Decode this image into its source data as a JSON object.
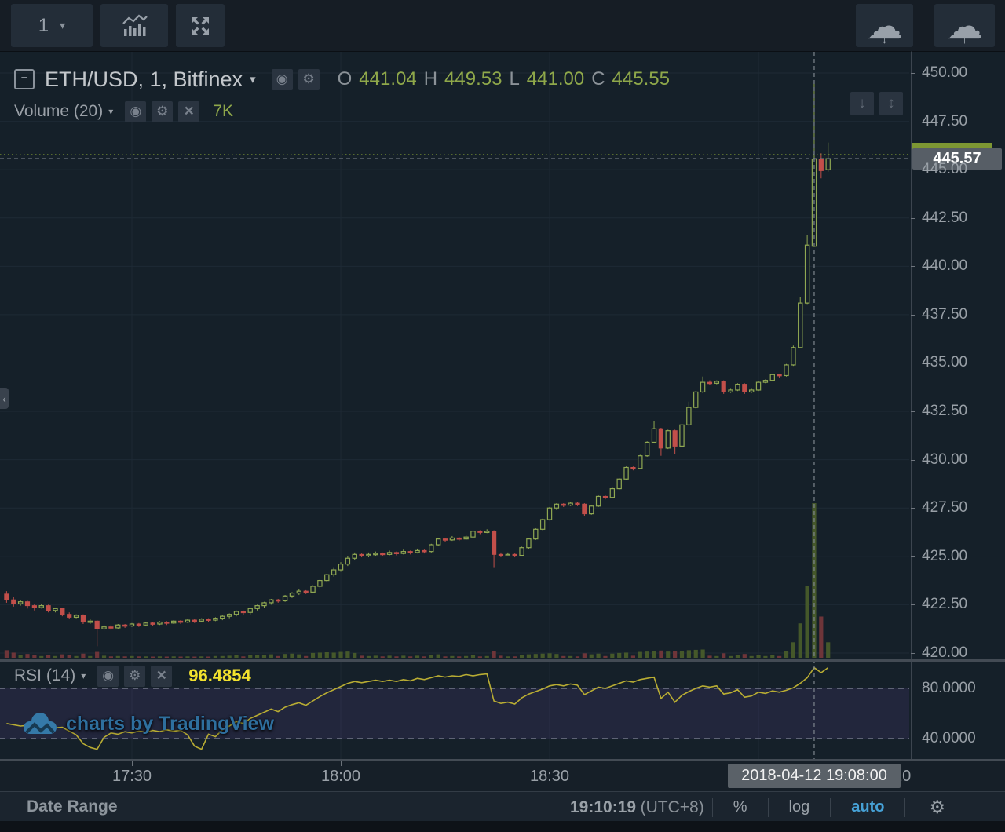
{
  "top_toolbar": {
    "interval": "1",
    "interval_caret": "▾",
    "style_button": "chart-style",
    "fullscreen_button": "fullscreen",
    "cloud_load": "cloud-download",
    "cloud_save": "cloud-upload"
  },
  "header": {
    "collapse_glyph": "–",
    "symbol_title": "ETH/USD, 1, Bitfinex",
    "caret": "▾",
    "eye_glyph": "◉",
    "gear_glyph": "⚙",
    "ohlc": {
      "o_label": "O",
      "o": "441.04",
      "h_label": "H",
      "h": "449.53",
      "l_label": "L",
      "l": "441.00",
      "c_label": "C",
      "c": "445.55"
    }
  },
  "volume_row": {
    "label": "Volume (20)",
    "caret": "▾",
    "value": "7K"
  },
  "rsi_row": {
    "label": "RSI (14)",
    "caret": "▾",
    "value": "96.4854"
  },
  "scale_buttons": {
    "down_arrow": "↓",
    "updown_arrow": "↕"
  },
  "left_tab_glyph": "‹",
  "watermark": {
    "text": "charts by TradingView"
  },
  "price_axis": {
    "labels": [
      {
        "text": "450.00",
        "value": 450.0
      },
      {
        "text": "447.50",
        "value": 447.5
      },
      {
        "text": "445.00",
        "value": 445.0
      },
      {
        "text": "442.50",
        "value": 442.5
      },
      {
        "text": "440.00",
        "value": 440.0
      },
      {
        "text": "437.50",
        "value": 437.5
      },
      {
        "text": "435.00",
        "value": 435.0
      },
      {
        "text": "432.50",
        "value": 432.5
      },
      {
        "text": "430.00",
        "value": 430.0
      },
      {
        "text": "427.50",
        "value": 427.5
      },
      {
        "text": "425.00",
        "value": 425.0
      },
      {
        "text": "422.50",
        "value": 422.5
      },
      {
        "text": "420.00",
        "value": 420.0
      }
    ],
    "rsi_labels": [
      {
        "text": "80.0000",
        "value": 80
      },
      {
        "text": "40.0000",
        "value": 40
      }
    ],
    "crosshair_badge": "445.57"
  },
  "time_axis": {
    "labels": [
      {
        "text": "17:30",
        "minute": 18
      },
      {
        "text": "18:00",
        "minute": 48
      },
      {
        "text": "18:30",
        "minute": 78
      }
    ],
    "partial_label": "20",
    "crosshair_badge": "2018-04-12 19:08:00"
  },
  "bottom_toolbar": {
    "date_range": "Date Range",
    "clock": "19:10:19",
    "tz": "(UTC+8)",
    "percent": "%",
    "log": "log",
    "auto": "auto",
    "gear_glyph": "⚙"
  },
  "colors": {
    "bg": "#152029",
    "grid": "#1e2a35",
    "up": "#90a852",
    "down": "#c24f4a",
    "vol_up": "#45582a",
    "vol_down": "#6e3539",
    "rsi_line": "#b9ad33",
    "rsi_value": "#f2e22e",
    "band_fill": "rgba(125,88,190,0.13)",
    "band_line": "#8e93a2",
    "price_line": "#7f9a33",
    "crosshair": "#7e868e",
    "badge_bg": "#575e66",
    "accent_blue": "#46a1d6",
    "watermark_blue": "#2e6f9e",
    "axis_text": "#99a0a7"
  },
  "chart_data": {
    "type": "candlestick",
    "symbol": "ETH/USD",
    "exchange": "Bitfinex",
    "interval_minutes": 1,
    "start_time": "17:12",
    "current_price": 445.57,
    "ohlc_readout": {
      "open": 441.04,
      "high": 449.53,
      "low": 441.0,
      "close": 445.55
    },
    "volume_ma_label": "7K",
    "rsi_period": 14,
    "rsi_current": 96.4854,
    "rsi_guides": [
      80,
      40
    ],
    "price_axis_visible_range": [
      419.0,
      451.0
    ],
    "crosshair": {
      "index": 116,
      "time": "2018-04-12 19:08:00",
      "price": 445.57
    },
    "candles": [
      [
        423.05,
        423.2,
        422.6,
        422.75,
        2.2
      ],
      [
        422.75,
        422.9,
        422.4,
        422.55,
        1.5
      ],
      [
        422.55,
        422.75,
        422.45,
        422.65,
        0.8
      ],
      [
        422.65,
        422.7,
        422.3,
        422.45,
        1.1
      ],
      [
        422.45,
        422.55,
        422.2,
        422.35,
        0.9
      ],
      [
        422.35,
        422.55,
        422.3,
        422.45,
        0.5
      ],
      [
        422.45,
        422.5,
        422.1,
        422.2,
        0.9
      ],
      [
        422.2,
        422.35,
        422.1,
        422.3,
        0.5
      ],
      [
        422.3,
        422.35,
        421.9,
        422.0,
        1.0
      ],
      [
        422.0,
        422.1,
        421.75,
        421.85,
        0.8
      ],
      [
        421.85,
        422.0,
        421.8,
        421.95,
        0.5
      ],
      [
        421.95,
        422.0,
        421.5,
        421.6,
        1.2
      ],
      [
        421.6,
        421.75,
        421.5,
        421.65,
        0.5
      ],
      [
        421.65,
        421.7,
        420.35,
        421.25,
        1.7
      ],
      [
        421.25,
        421.45,
        421.15,
        421.35,
        0.6
      ],
      [
        421.35,
        421.45,
        421.2,
        421.3,
        0.4
      ],
      [
        421.3,
        421.5,
        421.25,
        421.45,
        0.5
      ],
      [
        421.45,
        421.5,
        421.3,
        421.4,
        0.4
      ],
      [
        421.4,
        421.55,
        421.35,
        421.5,
        0.5
      ],
      [
        421.5,
        421.55,
        421.35,
        421.45,
        0.4
      ],
      [
        421.45,
        421.6,
        421.4,
        421.55,
        0.4
      ],
      [
        421.55,
        421.6,
        421.4,
        421.5,
        0.3
      ],
      [
        421.5,
        421.65,
        421.45,
        421.6,
        0.4
      ],
      [
        421.6,
        421.65,
        421.45,
        421.55,
        0.3
      ],
      [
        421.55,
        421.7,
        421.5,
        421.65,
        0.4
      ],
      [
        421.65,
        421.7,
        421.5,
        421.6,
        0.3
      ],
      [
        421.6,
        421.75,
        421.55,
        421.7,
        0.4
      ],
      [
        421.7,
        421.75,
        421.55,
        421.65,
        0.3
      ],
      [
        421.65,
        421.8,
        421.6,
        421.75,
        0.4
      ],
      [
        421.75,
        421.8,
        421.6,
        421.7,
        0.3
      ],
      [
        421.7,
        421.85,
        421.65,
        421.8,
        0.5
      ],
      [
        421.8,
        421.95,
        421.7,
        421.9,
        0.5
      ],
      [
        421.9,
        422.05,
        421.8,
        422.0,
        0.6
      ],
      [
        422.0,
        422.2,
        421.9,
        422.15,
        0.7
      ],
      [
        422.15,
        422.2,
        421.95,
        422.1,
        0.4
      ],
      [
        422.1,
        422.35,
        422.0,
        422.3,
        0.7
      ],
      [
        422.3,
        422.5,
        422.2,
        422.45,
        0.8
      ],
      [
        422.45,
        422.65,
        422.35,
        422.6,
        0.9
      ],
      [
        422.6,
        422.8,
        422.5,
        422.75,
        1.0
      ],
      [
        422.75,
        422.8,
        422.6,
        422.7,
        0.5
      ],
      [
        422.7,
        423.0,
        422.65,
        422.95,
        1.1
      ],
      [
        422.95,
        423.15,
        422.85,
        423.1,
        1.2
      ],
      [
        423.1,
        423.3,
        423.0,
        423.2,
        1.0
      ],
      [
        423.2,
        423.25,
        423.05,
        423.15,
        0.5
      ],
      [
        423.15,
        423.5,
        423.1,
        423.45,
        1.4
      ],
      [
        423.45,
        423.8,
        423.35,
        423.75,
        1.5
      ],
      [
        423.75,
        424.1,
        423.65,
        424.05,
        1.6
      ],
      [
        424.05,
        424.4,
        423.95,
        424.3,
        1.5
      ],
      [
        424.3,
        424.7,
        424.2,
        424.6,
        1.7
      ],
      [
        424.6,
        425.0,
        424.5,
        424.9,
        1.8
      ],
      [
        424.9,
        425.2,
        424.8,
        425.1,
        1.4
      ],
      [
        425.1,
        425.15,
        424.95,
        425.05,
        0.6
      ],
      [
        425.05,
        425.2,
        424.95,
        425.1,
        0.5
      ],
      [
        425.1,
        425.25,
        425.0,
        425.15,
        0.6
      ],
      [
        425.15,
        425.2,
        425.0,
        425.1,
        0.4
      ],
      [
        425.1,
        425.3,
        425.05,
        425.2,
        0.6
      ],
      [
        425.2,
        425.25,
        425.05,
        425.15,
        0.4
      ],
      [
        425.15,
        425.35,
        425.1,
        425.25,
        0.6
      ],
      [
        425.25,
        425.3,
        425.1,
        425.2,
        0.4
      ],
      [
        425.2,
        425.4,
        425.15,
        425.3,
        0.6
      ],
      [
        425.3,
        425.35,
        425.15,
        425.25,
        0.4
      ],
      [
        425.25,
        425.65,
        425.2,
        425.6,
        0.9
      ],
      [
        425.6,
        425.95,
        425.55,
        425.9,
        1.0
      ],
      [
        425.9,
        425.95,
        425.75,
        425.85,
        0.4
      ],
      [
        425.85,
        426.05,
        425.8,
        425.95,
        0.5
      ],
      [
        425.95,
        426.0,
        425.8,
        425.9,
        0.4
      ],
      [
        425.9,
        426.1,
        425.85,
        426.0,
        0.5
      ],
      [
        426.0,
        426.35,
        425.95,
        426.3,
        0.9
      ],
      [
        426.3,
        426.35,
        426.15,
        426.25,
        0.4
      ],
      [
        426.25,
        426.4,
        426.2,
        426.3,
        0.5
      ],
      [
        426.3,
        426.35,
        424.4,
        425.1,
        1.9
      ],
      [
        425.1,
        425.2,
        424.95,
        425.05,
        0.6
      ],
      [
        425.05,
        425.2,
        425.0,
        425.1,
        0.4
      ],
      [
        425.1,
        425.15,
        424.95,
        425.05,
        0.4
      ],
      [
        425.05,
        425.5,
        425.0,
        425.45,
        0.8
      ],
      [
        425.45,
        425.95,
        425.4,
        425.9,
        1.0
      ],
      [
        425.9,
        426.45,
        425.85,
        426.4,
        1.1
      ],
      [
        426.4,
        426.95,
        426.35,
        426.9,
        1.2
      ],
      [
        426.9,
        427.55,
        426.85,
        427.5,
        1.3
      ],
      [
        427.5,
        427.75,
        427.4,
        427.7,
        1.1
      ],
      [
        427.7,
        427.75,
        427.55,
        427.65,
        0.5
      ],
      [
        427.65,
        427.8,
        427.6,
        427.75,
        0.5
      ],
      [
        427.75,
        427.8,
        427.6,
        427.7,
        0.4
      ],
      [
        427.7,
        427.75,
        427.1,
        427.2,
        1.3
      ],
      [
        427.2,
        427.65,
        427.15,
        427.6,
        1.0
      ],
      [
        427.6,
        428.15,
        427.55,
        428.1,
        1.2
      ],
      [
        428.1,
        428.15,
        427.95,
        428.05,
        0.5
      ],
      [
        428.05,
        428.55,
        428.0,
        428.5,
        1.2
      ],
      [
        428.5,
        429.05,
        428.45,
        429.0,
        1.4
      ],
      [
        429.0,
        429.65,
        428.95,
        429.6,
        1.5
      ],
      [
        429.6,
        429.65,
        429.45,
        429.55,
        0.6
      ],
      [
        429.55,
        430.25,
        429.5,
        430.2,
        1.7
      ],
      [
        430.2,
        430.95,
        430.15,
        430.9,
        1.8
      ],
      [
        430.9,
        432.0,
        430.85,
        431.6,
        2.0
      ],
      [
        431.6,
        431.65,
        430.2,
        430.6,
        2.1
      ],
      [
        430.6,
        431.55,
        430.55,
        431.5,
        1.8
      ],
      [
        431.5,
        431.55,
        430.3,
        430.7,
        1.9
      ],
      [
        430.7,
        431.85,
        430.65,
        431.8,
        1.9
      ],
      [
        431.8,
        433.0,
        431.75,
        432.7,
        2.2
      ],
      [
        432.7,
        433.55,
        432.65,
        433.5,
        2.3
      ],
      [
        433.5,
        434.3,
        433.45,
        434.0,
        2.4
      ],
      [
        434.0,
        434.1,
        433.85,
        433.95,
        0.6
      ],
      [
        433.95,
        434.1,
        433.9,
        434.05,
        0.5
      ],
      [
        434.05,
        434.1,
        433.4,
        433.5,
        1.3
      ],
      [
        433.5,
        433.7,
        433.45,
        433.6,
        0.5
      ],
      [
        433.6,
        433.95,
        433.55,
        433.9,
        0.8
      ],
      [
        433.9,
        433.95,
        433.4,
        433.5,
        1.1
      ],
      [
        433.5,
        433.7,
        433.45,
        433.6,
        0.5
      ],
      [
        433.6,
        434.05,
        433.55,
        434.0,
        0.9
      ],
      [
        434.0,
        434.15,
        433.95,
        434.1,
        0.5
      ],
      [
        434.1,
        434.45,
        434.05,
        434.4,
        0.9
      ],
      [
        434.4,
        434.45,
        434.25,
        434.35,
        0.5
      ],
      [
        434.35,
        434.95,
        434.3,
        434.9,
        2.0
      ],
      [
        434.9,
        435.9,
        434.85,
        435.8,
        4.5
      ],
      [
        435.8,
        438.4,
        435.75,
        438.1,
        10.0
      ],
      [
        438.1,
        441.6,
        438.05,
        441.1,
        21.0
      ],
      [
        441.04,
        449.53,
        441.0,
        445.55,
        45.0
      ],
      [
        445.55,
        445.85,
        444.55,
        444.95,
        12.0
      ],
      [
        445.0,
        446.4,
        444.9,
        445.57,
        4.5
      ]
    ],
    "volume_unit": "K",
    "rsi_points": [
      [
        0,
        52
      ],
      [
        2,
        50
      ],
      [
        4,
        51
      ],
      [
        6,
        48
      ],
      [
        8,
        49
      ],
      [
        9,
        46
      ],
      [
        10,
        43
      ],
      [
        11,
        36
      ],
      [
        12,
        33
      ],
      [
        13,
        31.5
      ],
      [
        14,
        41
      ],
      [
        15,
        44.5
      ],
      [
        16,
        43.5
      ],
      [
        17,
        45.5
      ],
      [
        18,
        44.5
      ],
      [
        19,
        46
      ],
      [
        20,
        45
      ],
      [
        21,
        46.5
      ],
      [
        22,
        45.5
      ],
      [
        23,
        47
      ],
      [
        24,
        46
      ],
      [
        25,
        46.5
      ],
      [
        26,
        43
      ],
      [
        27,
        34
      ],
      [
        28,
        31.5
      ],
      [
        29,
        43.5
      ],
      [
        30,
        41.5
      ],
      [
        31,
        47
      ],
      [
        32,
        50
      ],
      [
        33,
        53.5
      ],
      [
        34,
        52
      ],
      [
        35,
        56
      ],
      [
        36,
        58.5
      ],
      [
        37,
        61
      ],
      [
        38,
        63.5
      ],
      [
        39,
        61.5
      ],
      [
        40,
        65
      ],
      [
        41,
        67
      ],
      [
        42,
        68.5
      ],
      [
        43,
        66.5
      ],
      [
        44,
        70
      ],
      [
        45,
        73.5
      ],
      [
        46,
        76.5
      ],
      [
        47,
        79
      ],
      [
        48,
        81.5
      ],
      [
        49,
        84
      ],
      [
        50,
        85.5
      ],
      [
        51,
        84.5
      ],
      [
        52,
        85.5
      ],
      [
        53,
        86.5
      ],
      [
        54,
        85.5
      ],
      [
        55,
        86.5
      ],
      [
        56,
        85.5
      ],
      [
        57,
        87
      ],
      [
        58,
        86
      ],
      [
        59,
        88
      ],
      [
        60,
        87
      ],
      [
        61,
        88.5
      ],
      [
        62,
        90
      ],
      [
        63,
        89
      ],
      [
        64,
        90
      ],
      [
        65,
        89.5
      ],
      [
        66,
        91
      ],
      [
        67,
        90
      ],
      [
        68,
        91
      ],
      [
        69,
        91.5
      ],
      [
        70,
        70
      ],
      [
        71,
        68
      ],
      [
        72,
        69
      ],
      [
        73,
        67.5
      ],
      [
        74,
        72.5
      ],
      [
        75,
        75.5
      ],
      [
        76,
        77.5
      ],
      [
        77,
        79.5
      ],
      [
        78,
        82
      ],
      [
        79,
        83
      ],
      [
        80,
        82
      ],
      [
        81,
        83.5
      ],
      [
        82,
        82.5
      ],
      [
        83,
        75
      ],
      [
        84,
        78
      ],
      [
        85,
        81
      ],
      [
        86,
        80
      ],
      [
        87,
        82
      ],
      [
        88,
        84
      ],
      [
        89,
        86
      ],
      [
        90,
        85
      ],
      [
        91,
        87
      ],
      [
        92,
        88
      ],
      [
        93,
        89
      ],
      [
        94,
        72
      ],
      [
        95,
        77
      ],
      [
        96,
        69
      ],
      [
        97,
        74.5
      ],
      [
        98,
        77.5
      ],
      [
        99,
        80
      ],
      [
        100,
        82
      ],
      [
        101,
        81
      ],
      [
        102,
        82
      ],
      [
        103,
        75.5
      ],
      [
        104,
        76.5
      ],
      [
        105,
        79
      ],
      [
        106,
        73
      ],
      [
        107,
        74
      ],
      [
        108,
        77
      ],
      [
        109,
        76
      ],
      [
        110,
        78
      ],
      [
        111,
        77
      ],
      [
        112,
        78.5
      ],
      [
        113,
        80.5
      ],
      [
        114,
        84
      ],
      [
        115,
        88.5
      ],
      [
        116,
        96.49
      ],
      [
        117,
        92.5
      ],
      [
        118,
        96.49
      ]
    ]
  }
}
